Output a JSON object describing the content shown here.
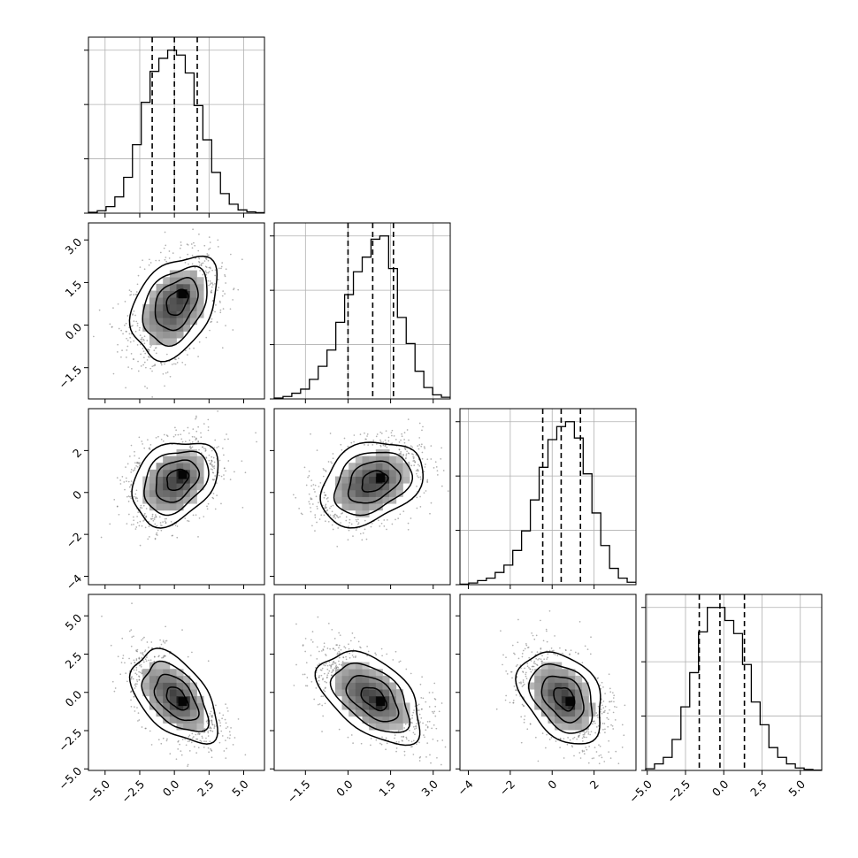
{
  "chart_data": {
    "type": "corner",
    "n_params": 4,
    "colors": {
      "line": "#000000",
      "grid": "#b0b0b0",
      "points": "#6f6f6f",
      "fill_light": "#f2f2f2",
      "fill_dark": "#000000"
    },
    "grid": true,
    "quantiles": [
      0.16,
      0.5,
      0.84
    ],
    "params": [
      {
        "range": [
          -6.2,
          6.5
        ],
        "ticks": [
          -5.0,
          -2.5,
          0.0,
          2.5,
          5.0
        ],
        "tick_labels": [
          "−5.0",
          "−2.5",
          "0.0",
          "2.5",
          "5.0"
        ],
        "quantile_values": [
          -1.6,
          0.0,
          1.65
        ]
      },
      {
        "range": [
          -2.6,
          3.6
        ],
        "ticks": [
          -1.5,
          0.0,
          1.5,
          3.0
        ],
        "tick_labels": [
          "−1.5",
          "0.0",
          "1.5",
          "3.0"
        ],
        "quantile_values": [
          0.0,
          0.87,
          1.6
        ]
      },
      {
        "range": [
          -4.4,
          4.0
        ],
        "ticks": [
          -4,
          -2,
          0,
          2
        ],
        "tick_labels": [
          "−4",
          "−2",
          "0",
          "2"
        ],
        "quantile_values": [
          -0.45,
          0.43,
          1.35
        ]
      },
      {
        "range": [
          -5.1,
          6.4
        ],
        "ticks": [
          -5.0,
          -2.5,
          0.0,
          2.5,
          5.0
        ],
        "tick_labels": [
          "−5.0",
          "−2.5",
          "0.0",
          "2.5",
          "5.0"
        ],
        "quantile_values": [
          -1.6,
          -0.25,
          1.35
        ]
      }
    ],
    "histograms": [
      {
        "param": 0,
        "edges": [
          -6.2,
          -5.565,
          -4.93,
          -4.295,
          -3.66,
          -3.025,
          -2.39,
          -1.755,
          -1.12,
          -0.485,
          0.15,
          0.785,
          1.42,
          2.055,
          2.69,
          3.325,
          3.96,
          4.595,
          5.23,
          5.865,
          6.5
        ],
        "counts": [
          0.005,
          0.015,
          0.04,
          0.1,
          0.22,
          0.42,
          0.68,
          0.87,
          0.95,
          1.0,
          0.97,
          0.86,
          0.66,
          0.45,
          0.25,
          0.12,
          0.055,
          0.02,
          0.008,
          0.003
        ]
      },
      {
        "param": 1,
        "edges": [
          -2.6,
          -2.29,
          -1.98,
          -1.67,
          -1.36,
          -1.05,
          -0.74,
          -0.43,
          -0.12,
          0.19,
          0.5,
          0.81,
          1.12,
          1.43,
          1.74,
          2.05,
          2.36,
          2.67,
          2.98,
          3.29,
          3.6
        ],
        "counts": [
          0.005,
          0.015,
          0.035,
          0.06,
          0.12,
          0.2,
          0.3,
          0.47,
          0.64,
          0.78,
          0.87,
          0.98,
          1.0,
          0.8,
          0.5,
          0.34,
          0.17,
          0.07,
          0.025,
          0.01
        ]
      },
      {
        "param": 2,
        "edges": [
          -4.4,
          -3.98,
          -3.56,
          -3.14,
          -2.72,
          -2.3,
          -1.88,
          -1.46,
          -1.04,
          -0.62,
          -0.2,
          0.22,
          0.64,
          1.06,
          1.48,
          1.9,
          2.32,
          2.74,
          3.16,
          3.58,
          4.0
        ],
        "counts": [
          0.003,
          0.01,
          0.025,
          0.04,
          0.075,
          0.12,
          0.21,
          0.33,
          0.52,
          0.72,
          0.89,
          0.97,
          1.0,
          0.9,
          0.68,
          0.44,
          0.24,
          0.1,
          0.04,
          0.015
        ]
      },
      {
        "param": 3,
        "edges": [
          -5.1,
          -4.525,
          -3.95,
          -3.375,
          -2.8,
          -2.225,
          -1.65,
          -1.075,
          -0.5,
          0.075,
          0.65,
          1.225,
          1.8,
          2.375,
          2.95,
          3.525,
          4.1,
          4.675,
          5.25,
          5.825,
          6.4
        ],
        "counts": [
          0.01,
          0.04,
          0.08,
          0.19,
          0.39,
          0.6,
          0.85,
          1.0,
          1.0,
          0.92,
          0.84,
          0.65,
          0.42,
          0.28,
          0.14,
          0.08,
          0.04,
          0.015,
          0.006,
          0.002
        ]
      }
    ],
    "pairs": [
      {
        "x_param": 0,
        "y_param": 1,
        "center": [
          0.0,
          0.65
        ],
        "sd": [
          1.55,
          0.9
        ],
        "corr": 0.35,
        "peak": [
          0.6,
          1.1
        ]
      },
      {
        "x_param": 0,
        "y_param": 2,
        "center": [
          0.0,
          0.5
        ],
        "sd": [
          1.55,
          1.0
        ],
        "corr": 0.3,
        "peak": [
          0.6,
          0.85
        ]
      },
      {
        "x_param": 1,
        "y_param": 2,
        "center": [
          0.8,
          0.45
        ],
        "sd": [
          0.9,
          1.0
        ],
        "corr": 0.3,
        "peak": [
          1.15,
          0.7
        ]
      },
      {
        "x_param": 0,
        "y_param": 3,
        "center": [
          0.0,
          -0.3
        ],
        "sd": [
          1.55,
          1.5
        ],
        "corr": -0.5,
        "peak": [
          0.6,
          -0.6
        ]
      },
      {
        "x_param": 1,
        "y_param": 3,
        "center": [
          0.8,
          -0.3
        ],
        "sd": [
          0.9,
          1.5
        ],
        "corr": -0.5,
        "peak": [
          1.15,
          -0.6
        ]
      },
      {
        "x_param": 2,
        "y_param": 3,
        "center": [
          0.45,
          -0.3
        ],
        "sd": [
          1.0,
          1.5
        ],
        "corr": -0.35,
        "peak": [
          0.85,
          -0.6
        ]
      }
    ],
    "contour_levels_sigma": [
      0.5,
      1.0,
      1.5,
      2.0
    ]
  }
}
